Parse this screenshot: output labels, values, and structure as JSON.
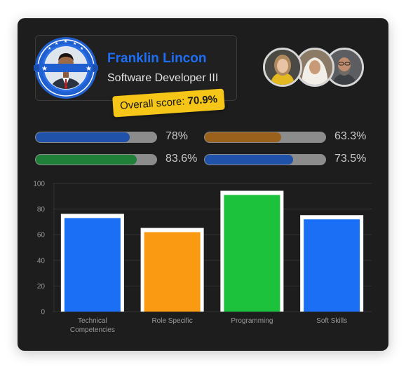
{
  "profile": {
    "name": "Franklin Lincon",
    "role": "Software Developer III",
    "score_label": "Overall score:",
    "score_value": "70.9%"
  },
  "avatars": [
    "woman-blonde-avatar",
    "woman-hijab-avatar",
    "man-bearded-avatar"
  ],
  "progress": [
    {
      "value": 78,
      "label": "78%",
      "color": "#1f52a8"
    },
    {
      "value": 63.3,
      "label": "63.3%",
      "color": "#9a611d"
    },
    {
      "value": 83.6,
      "label": "83.6%",
      "color": "#20803a"
    },
    {
      "value": 73.5,
      "label": "73.5%",
      "color": "#1f52a8"
    }
  ],
  "chart_data": {
    "type": "bar",
    "categories": [
      "Technical Competencies",
      "Role Specific",
      "Programming",
      "Soft Skills"
    ],
    "category_lines": [
      [
        "Technical",
        "Competencies"
      ],
      [
        "Role Specific"
      ],
      [
        "Programming"
      ],
      [
        "Soft Skills"
      ]
    ],
    "values": [
      73,
      62,
      91,
      72
    ],
    "colors": [
      "#1a6ff5",
      "#fa9a12",
      "#1cc23c",
      "#1a6ff5"
    ],
    "ylim": [
      0,
      100
    ],
    "yticks": [
      0,
      20,
      40,
      60,
      80,
      100
    ],
    "grid": true,
    "legend": "none"
  }
}
